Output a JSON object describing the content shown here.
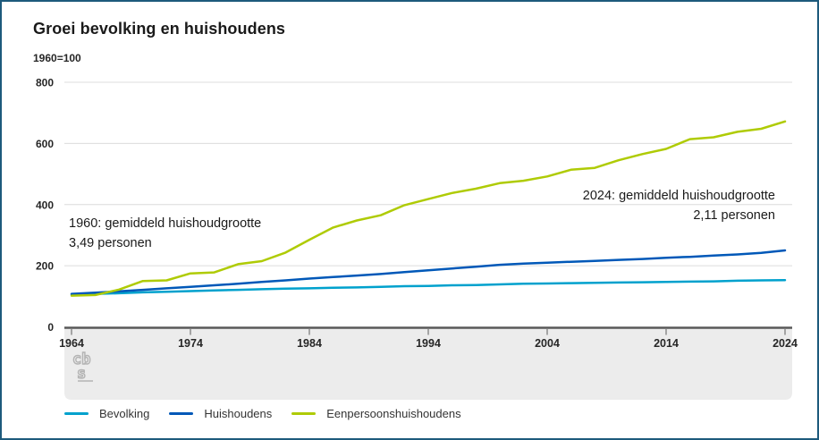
{
  "header": {
    "title": "Groei bevolking en huishoudens",
    "unit_note": "1960=100"
  },
  "watermark": {
    "icon": "cbs-logo",
    "text_top": "cb",
    "text_bottom": "s"
  },
  "colors": {
    "frame_border": "#1d5a7c",
    "gridline": "#dcdcdc",
    "axis": "#595959",
    "tick": "#8c8c8c",
    "band": "#ececec",
    "logo": "#b3b3b3",
    "text": "#1a1a1a"
  },
  "chart_data": {
    "type": "line",
    "title": "Groei bevolking en huishoudens",
    "subtitle": "1960=100",
    "xlabel": "",
    "ylabel": "",
    "ylim": [
      0,
      800
    ],
    "yticks": [
      0,
      200,
      400,
      600,
      800
    ],
    "xticks": [
      1964,
      1974,
      1984,
      1994,
      2004,
      2014,
      2024
    ],
    "grid": "horizontal",
    "legend_position": "bottom",
    "x": [
      1964,
      1966,
      1968,
      1970,
      1972,
      1974,
      1976,
      1978,
      1980,
      1982,
      1984,
      1986,
      1988,
      1990,
      1992,
      1994,
      1996,
      1998,
      2000,
      2002,
      2004,
      2006,
      2008,
      2010,
      2012,
      2014,
      2016,
      2018,
      2020,
      2022,
      2024
    ],
    "series": [
      {
        "name": "Bevolking",
        "color": "#00a1cd",
        "values": [
          106,
          108,
          110,
          113,
          115,
          117,
          119,
          121,
          123,
          125,
          126,
          128,
          129,
          131,
          133,
          134,
          136,
          137,
          139,
          141,
          142,
          143,
          144,
          145,
          146,
          147,
          148,
          149,
          151,
          152,
          153
        ]
      },
      {
        "name": "Huishoudens",
        "color": "#0058b8",
        "values": [
          108,
          112,
          116,
          121,
          126,
          131,
          136,
          141,
          147,
          152,
          158,
          163,
          168,
          173,
          179,
          185,
          191,
          197,
          203,
          207,
          210,
          213,
          216,
          219,
          222,
          226,
          229,
          233,
          237,
          242,
          250
        ]
      },
      {
        "name": "Eenpersoonshuishoudens",
        "color": "#afcb05",
        "values": [
          102,
          104,
          122,
          150,
          152,
          175,
          178,
          205,
          215,
          243,
          285,
          325,
          348,
          365,
          398,
          418,
          438,
          452,
          470,
          478,
          492,
          514,
          520,
          545,
          565,
          582,
          614,
          620,
          638,
          648,
          672
        ]
      }
    ],
    "annotations": [
      {
        "line1": "1960: gemiddeld huishoudgrootte",
        "line2": "3,49 personen",
        "align": "left"
      },
      {
        "line1": "2024: gemiddeld huishoudgrootte",
        "line2": "2,11 personen",
        "align": "right"
      }
    ]
  }
}
